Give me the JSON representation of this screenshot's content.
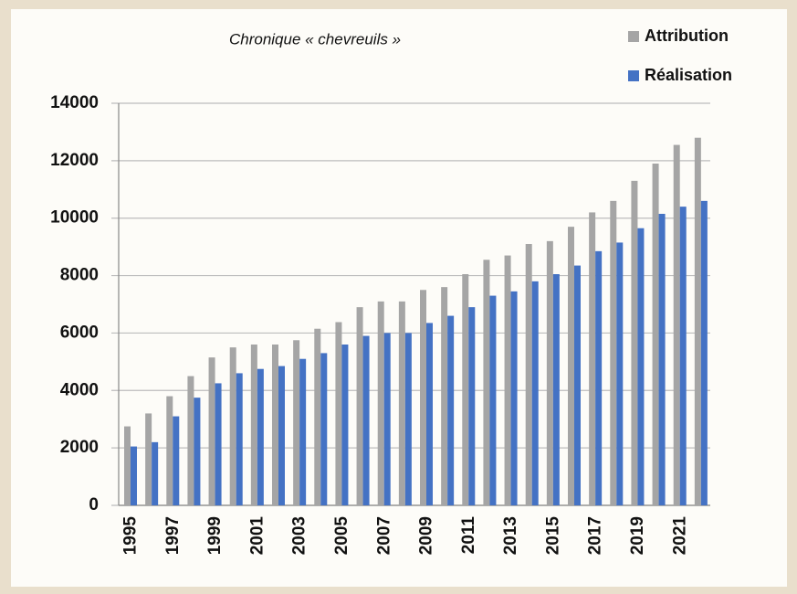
{
  "chart_data": {
    "type": "bar",
    "title": "Chronique « chevreuils »",
    "categories": [
      "1995",
      null,
      "1997",
      null,
      "1999",
      null,
      "2001",
      null,
      "2003",
      null,
      "2005",
      null,
      "2007",
      null,
      "2009",
      null,
      "2011",
      null,
      "2013",
      null,
      "2015",
      null,
      "2017",
      null,
      "2019",
      null,
      "2021",
      null
    ],
    "series": [
      {
        "name": "Attribution",
        "color": "#a5a5a5",
        "values": [
          2750,
          3200,
          3800,
          4500,
          5150,
          5500,
          5600,
          5600,
          5750,
          6150,
          6380,
          6900,
          7100,
          7100,
          7500,
          7600,
          8050,
          8550,
          8700,
          9100,
          9200,
          9700,
          10200,
          10600,
          11300,
          11900,
          12550,
          12800
        ]
      },
      {
        "name": "Réalisation",
        "color": "#4472c4",
        "values": [
          2050,
          2200,
          3100,
          3750,
          4250,
          4600,
          4750,
          4850,
          5100,
          5300,
          5600,
          5900,
          6000,
          6000,
          6350,
          6600,
          6900,
          7300,
          7450,
          7800,
          8050,
          8350,
          8850,
          9150,
          9650,
          10150,
          10400,
          10600
        ]
      }
    ],
    "ylim": [
      0,
      14000
    ],
    "yticks": [
      0,
      2000,
      4000,
      6000,
      8000,
      10000,
      12000,
      14000
    ],
    "grid": true
  }
}
